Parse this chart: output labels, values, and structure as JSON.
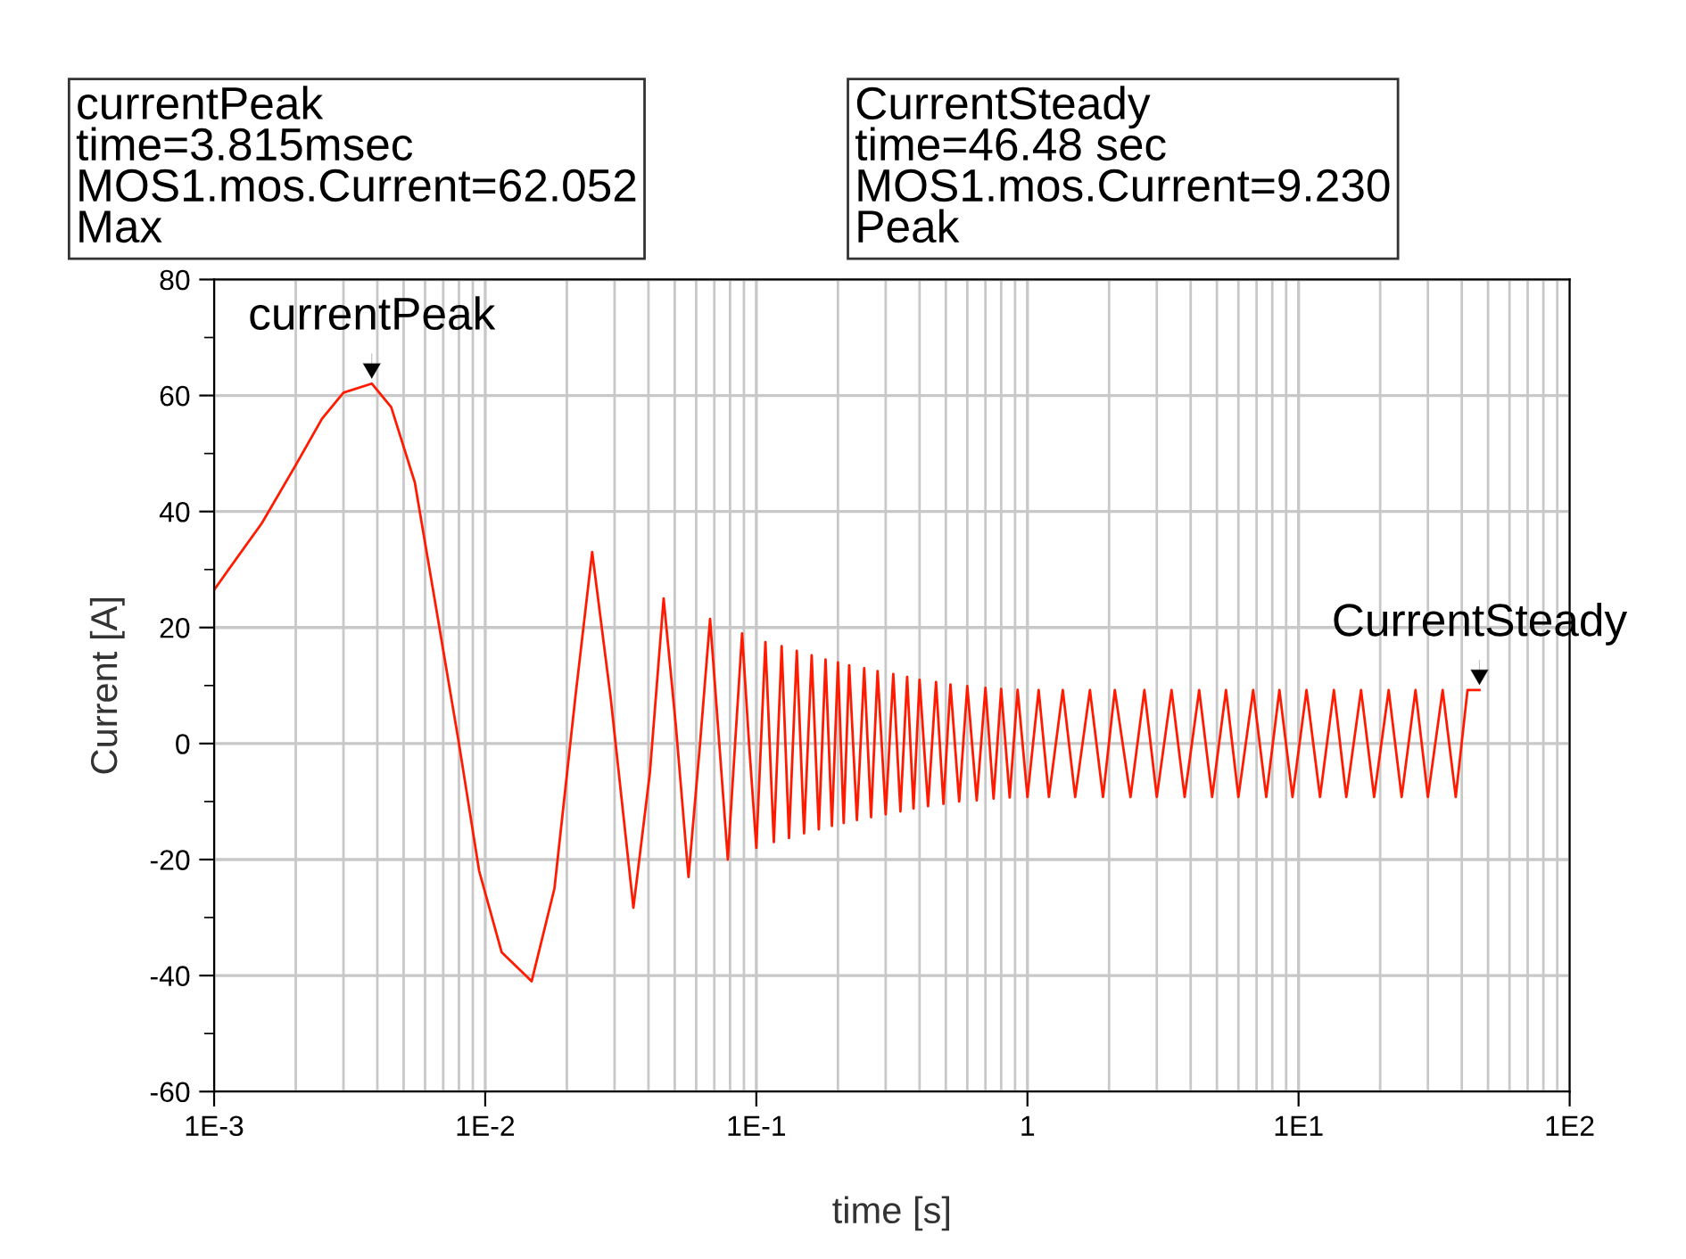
{
  "chart_data": {
    "type": "line",
    "xlabel": "time [s]",
    "ylabel": "Current [A]",
    "log": "x",
    "grid": true,
    "marker": "none",
    "line_style": "solid",
    "xlim": [
      0.001,
      100
    ],
    "xticks": [
      {
        "value": 0.001,
        "label": "1E-3"
      },
      {
        "value": 0.01,
        "label": "1E-2"
      },
      {
        "value": 0.1,
        "label": "1E-1"
      },
      1,
      {
        "value": 10,
        "label": "1E1"
      },
      {
        "value": 100,
        "label": "1E2"
      }
    ],
    "ylim": [
      -60,
      80
    ],
    "yticks": [
      -60,
      -40,
      -20,
      0,
      20,
      40,
      60,
      80
    ],
    "annotations": [
      "currentPeak\ntime=3.815msec\nMOS1.mos.Current=62.052\nMax",
      "CurrentSteady\ntime=46.48 sec\nMOS1.mos.Current=9.230\nPeak",
      {
        "text": "currentPeak",
        "x": 0.003815,
        "y": 62.052
      },
      {
        "text": "CurrentSteady",
        "x": 46.48,
        "y": 9.23
      }
    ],
    "series": [
      {
        "color": "#ff1a00",
        "x": [
          0.001,
          0.0015,
          0.002,
          0.0025,
          0.003,
          0.003815,
          0.0045,
          0.0055,
          0.0065,
          0.008,
          0.0095,
          0.0115,
          0.01483,
          0.018,
          0.0215,
          0.0248,
          0.029,
          0.0352,
          0.0405,
          0.0455,
          0.0505,
          0.0562,
          0.062,
          0.0675,
          0.073,
          0.0785,
          0.0835,
          0.0886,
          0.094,
          0.1,
          0.108,
          0.116,
          0.124,
          0.132,
          0.141,
          0.15,
          0.16,
          0.17,
          0.18,
          0.19,
          0.2,
          0.21,
          0.22,
          0.235,
          0.25,
          0.265,
          0.28,
          0.3,
          0.32,
          0.34,
          0.36,
          0.38,
          0.4,
          0.43,
          0.46,
          0.49,
          0.52,
          0.56,
          0.6,
          0.65,
          0.7,
          0.75,
          0.8,
          0.86,
          0.92,
          1.0,
          1.1,
          1.2,
          1.35,
          1.5,
          1.7,
          1.9,
          2.1,
          2.4,
          2.7,
          3.0,
          3.4,
          3.8,
          4.3,
          4.8,
          5.4,
          6.0,
          6.8,
          7.6,
          8.5,
          9.5,
          10.7,
          12,
          13.5,
          15,
          17,
          19,
          21.5,
          24,
          27,
          30,
          34,
          38,
          42,
          46.48
        ],
        "values": [
          26.5,
          38,
          48,
          56,
          60.5,
          62.052,
          58,
          45,
          25,
          0,
          -22,
          -36,
          -41,
          -25,
          8,
          33,
          8,
          -28.3,
          -5,
          25,
          3,
          -23,
          0,
          21.5,
          0,
          -20,
          0,
          19,
          0,
          -18,
          17.5,
          -17,
          16.8,
          -16.3,
          16,
          -15.5,
          15.2,
          -14.8,
          14.5,
          -14.2,
          14,
          -13.7,
          13.5,
          -13.2,
          13,
          -12.7,
          12.5,
          -12.2,
          12,
          -11.7,
          11.5,
          -11.2,
          11,
          -10.8,
          10.6,
          -10.4,
          10.2,
          -10,
          9.9,
          -9.8,
          9.6,
          -9.5,
          9.4,
          -9.3,
          9.25,
          -9.23,
          9.23,
          -9.23,
          9.23,
          -9.23,
          9.23,
          -9.23,
          9.23,
          -9.23,
          9.23,
          -9.23,
          9.23,
          -9.23,
          9.23,
          -9.23,
          9.23,
          -9.23,
          9.23,
          -9.23,
          9.23,
          -9.23,
          9.23,
          -9.23,
          9.23,
          -9.23,
          9.23,
          -9.23,
          9.23,
          -9.23,
          9.23,
          -9.23,
          9.23,
          -9.23,
          9.23,
          9.23
        ]
      }
    ]
  }
}
